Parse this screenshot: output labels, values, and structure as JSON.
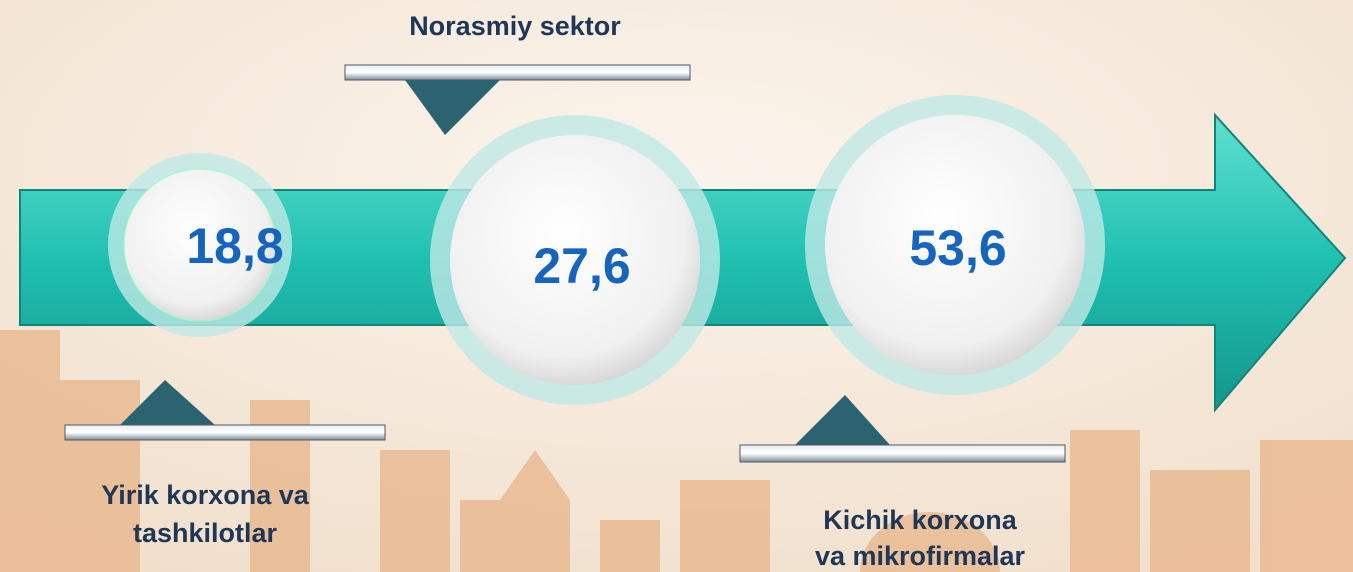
{
  "nodes": [
    {
      "value": "18,8",
      "label": [
        "Yirik korxona va",
        "tashkilotlar"
      ]
    },
    {
      "value": "27,6",
      "label": [
        "Norasmiy sektor"
      ]
    },
    {
      "value": "53,6",
      "label": [
        "Kichik korxona",
        "va mikrofirmalar"
      ]
    }
  ]
}
